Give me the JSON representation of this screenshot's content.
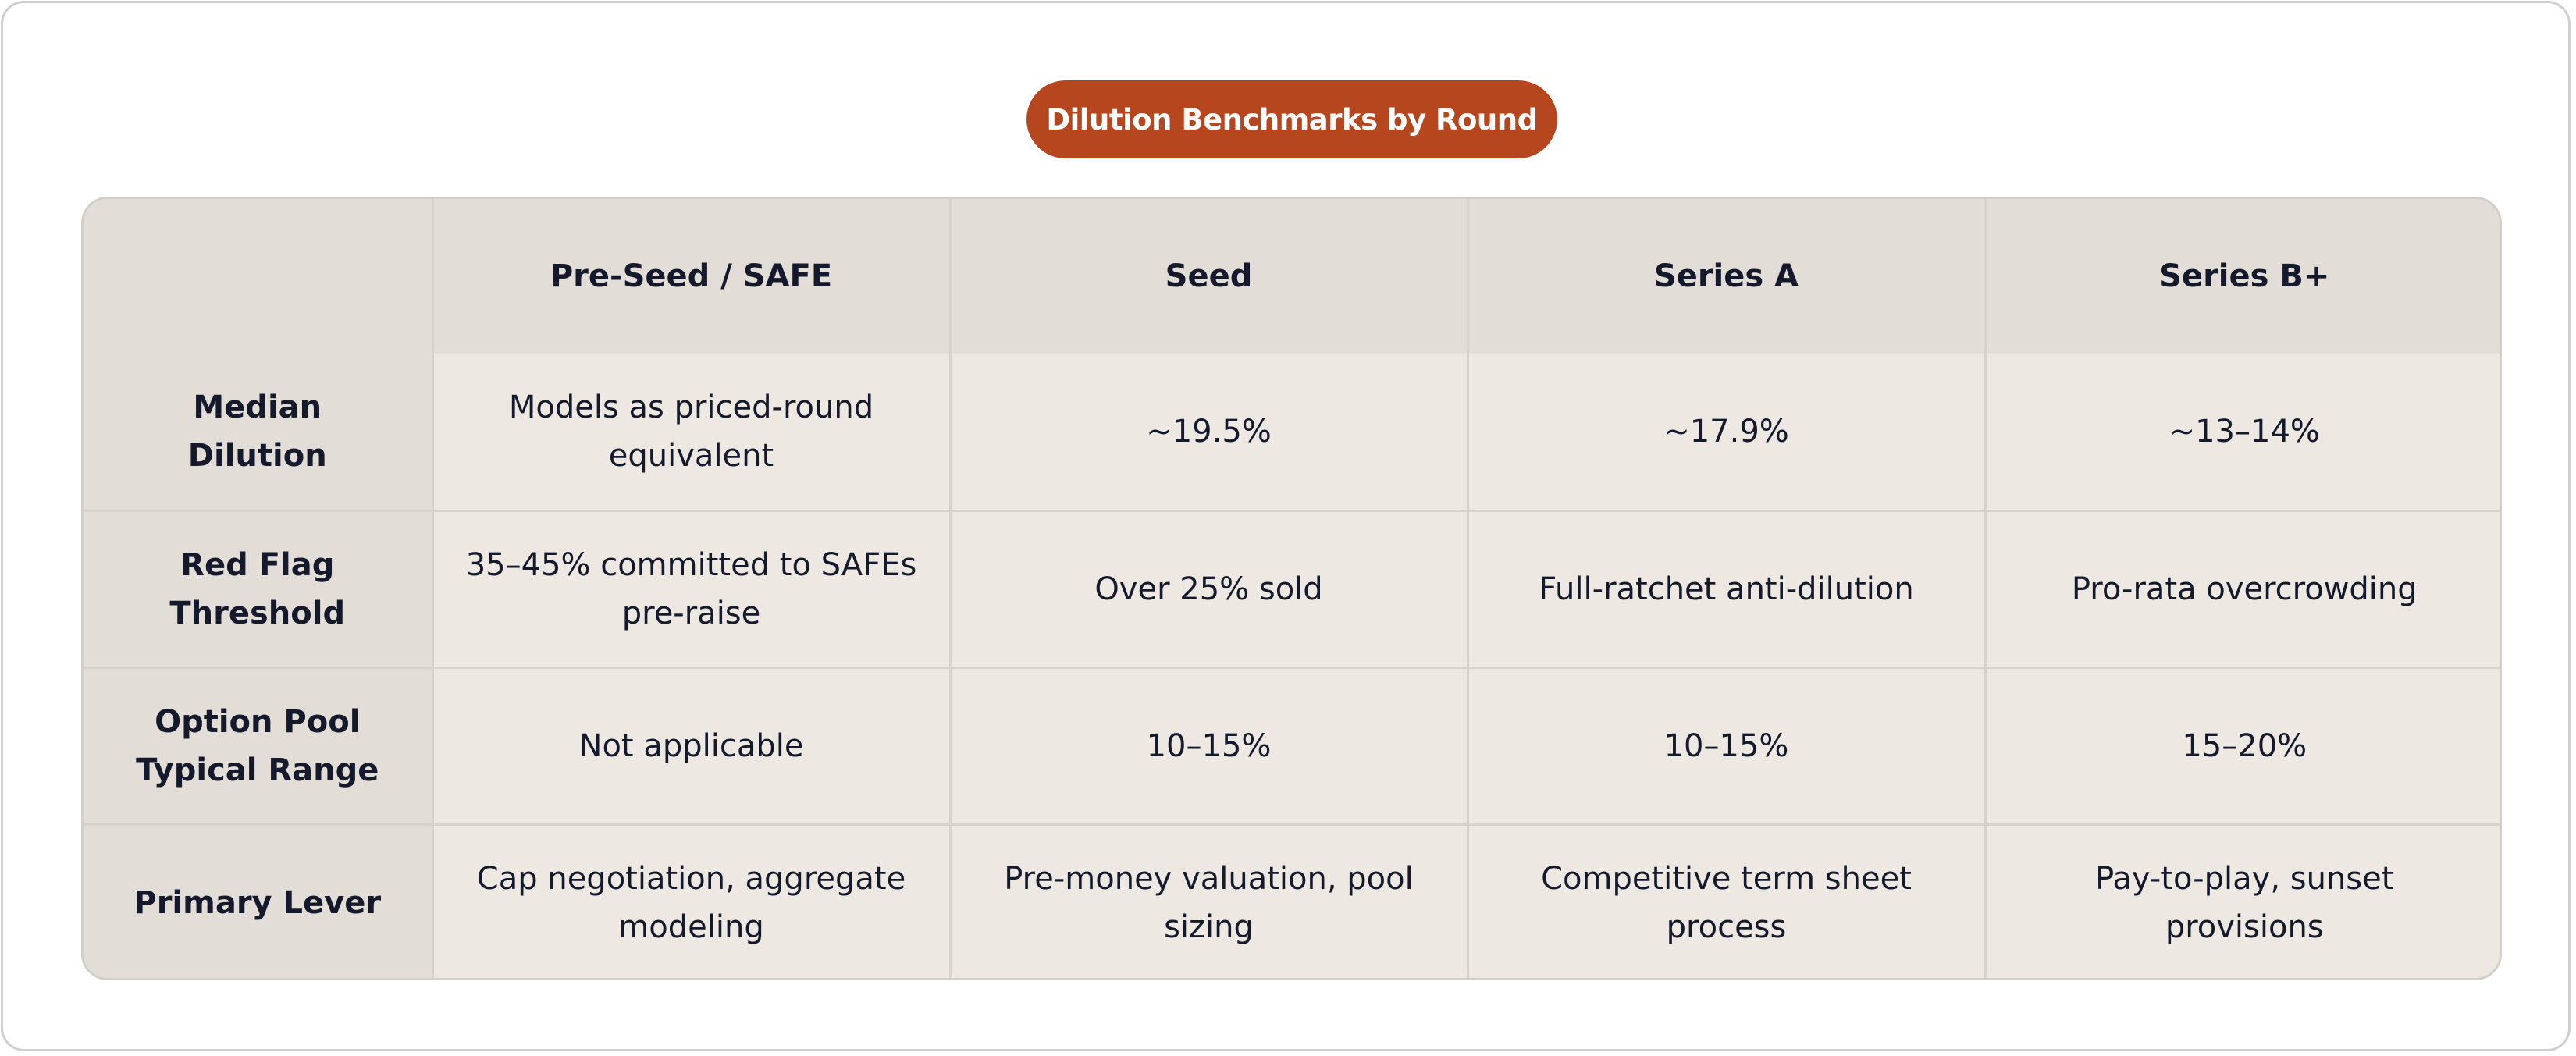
{
  "title": "Dilution Benchmarks by Round",
  "table": {
    "corner": "",
    "columns": [
      "Pre-Seed / SAFE",
      "Seed",
      "Series A",
      "Series B+"
    ],
    "rows": [
      {
        "label": "Median Dilution",
        "cells": [
          "Models as priced-round equivalent",
          "~19.5%",
          "~17.9%",
          "~13–14%"
        ]
      },
      {
        "label": "Red Flag Threshold",
        "cells": [
          "35–45% committed to SAFEs pre-raise",
          "Over 25% sold",
          "Full-ratchet anti-dilution",
          "Pro-rata overcrowding"
        ]
      },
      {
        "label": "Option Pool Typical Range",
        "cells": [
          "Not applicable",
          "10–15%",
          "10–15%",
          "15–20%"
        ]
      },
      {
        "label": "Primary Lever",
        "cells": [
          "Cap negotiation, aggregate modeling",
          "Pre-money valuation, pool sizing",
          "Competitive term sheet process",
          "Pay-to-play, sunset provisions"
        ]
      }
    ]
  },
  "colors": {
    "title_background": "#b5461d",
    "header_background": "#e2ddd7",
    "cell_background": "#ede8e2",
    "text": "#141a2b"
  }
}
